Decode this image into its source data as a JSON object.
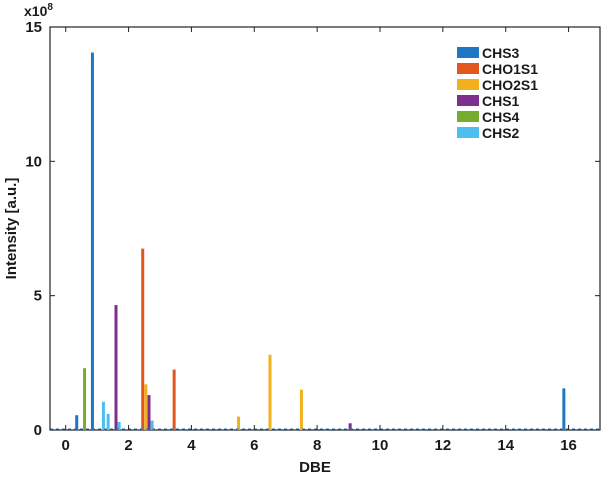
{
  "chart_data": {
    "type": "bar",
    "title": "",
    "xlabel": "DBE",
    "ylabel": "Intensity [a.u.]",
    "y_exponent_label": "x10",
    "y_exponent_power": "8",
    "xlim": [
      -0.5,
      17
    ],
    "ylim": [
      0,
      15
    ],
    "x_ticks": [
      0,
      2,
      4,
      6,
      8,
      10,
      12,
      14,
      16
    ],
    "x_tick_labels": [
      "0",
      "2",
      "4",
      "6",
      "8",
      "10",
      "12",
      "14",
      "16"
    ],
    "y_ticks": [
      0,
      5,
      10,
      15
    ],
    "y_tick_labels": [
      "0",
      "5",
      "10",
      "15"
    ],
    "grid": false,
    "legend_position": "top-right",
    "series": [
      {
        "name": "CHS3",
        "color": "#1f77c4",
        "points": [
          {
            "x": 0.35,
            "y": 0.55
          },
          {
            "x": 0.85,
            "y": 14.05
          },
          {
            "x": 15.85,
            "y": 1.55
          }
        ]
      },
      {
        "name": "CHO1S1",
        "color": "#e2571e",
        "points": [
          {
            "x": 2.45,
            "y": 6.75
          },
          {
            "x": 3.45,
            "y": 2.25
          }
        ]
      },
      {
        "name": "CHO2S1",
        "color": "#f2b01c",
        "points": [
          {
            "x": 2.55,
            "y": 1.7
          },
          {
            "x": 5.5,
            "y": 0.5
          },
          {
            "x": 6.5,
            "y": 2.8
          },
          {
            "x": 7.5,
            "y": 1.5
          }
        ]
      },
      {
        "name": "CHS1",
        "color": "#7e2f8e",
        "points": [
          {
            "x": 1.6,
            "y": 4.65
          },
          {
            "x": 2.65,
            "y": 1.3
          },
          {
            "x": 9.05,
            "y": 0.25
          }
        ]
      },
      {
        "name": "CHS4",
        "color": "#77ac30",
        "points": [
          {
            "x": 0.6,
            "y": 2.3
          }
        ]
      },
      {
        "name": "CHS2",
        "color": "#4dbeee",
        "points": [
          {
            "x": 1.2,
            "y": 1.05
          },
          {
            "x": 1.35,
            "y": 0.6
          },
          {
            "x": 1.7,
            "y": 0.3
          },
          {
            "x": 2.75,
            "y": 0.35
          }
        ]
      }
    ]
  }
}
